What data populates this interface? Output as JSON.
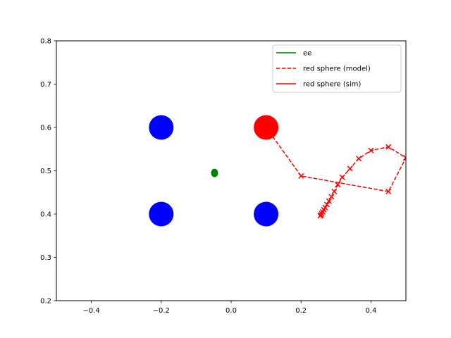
{
  "chart_data": {
    "type": "scatter",
    "title": "",
    "xlabel": "",
    "ylabel": "",
    "xlim": [
      -0.5,
      0.5
    ],
    "ylim": [
      0.2,
      0.8
    ],
    "xticks": [
      -0.4,
      -0.2,
      0.0,
      0.2,
      0.4
    ],
    "xtick_labels": [
      "−0.4",
      "−0.2",
      "0.0",
      "0.2",
      "0.4"
    ],
    "yticks": [
      0.2,
      0.3,
      0.4,
      0.5,
      0.6,
      0.7,
      0.8
    ],
    "ytick_labels": [
      "0.2",
      "0.3",
      "0.4",
      "0.5",
      "0.6",
      "0.7",
      "0.8"
    ],
    "grid": false,
    "legend_position": "top-right",
    "spheres": [
      {
        "color": "blue",
        "x": -0.2,
        "y": 0.6
      },
      {
        "color": "blue",
        "x": -0.2,
        "y": 0.4
      },
      {
        "color": "blue",
        "x": 0.1,
        "y": 0.4
      },
      {
        "color": "red",
        "x": 0.1,
        "y": 0.6
      }
    ],
    "series": [
      {
        "name": "ee",
        "color": "#008000",
        "style": "solid",
        "x": [
          -0.05,
          -0.045
        ],
        "y": [
          0.495,
          0.495
        ]
      },
      {
        "name": "red sphere (model)",
        "color": "#ff0000",
        "style": "dashed",
        "marker": "x",
        "x": [
          0.1,
          0.2,
          0.45,
          0.5,
          0.45,
          0.4,
          0.365,
          0.34,
          0.318,
          0.305,
          0.295,
          0.287,
          0.28,
          0.274,
          0.269,
          0.265,
          0.262,
          0.259,
          0.257,
          0.255
        ],
        "y": [
          0.6,
          0.488,
          0.452,
          0.53,
          0.555,
          0.547,
          0.528,
          0.505,
          0.485,
          0.468,
          0.452,
          0.44,
          0.43,
          0.422,
          0.415,
          0.41,
          0.405,
          0.401,
          0.398,
          0.396
        ]
      },
      {
        "name": "red sphere (sim)",
        "color": "#ff0000",
        "style": "solid",
        "x": [],
        "y": []
      }
    ],
    "legend": [
      {
        "label": "ee",
        "color": "#008000",
        "style": "solid"
      },
      {
        "label": "red sphere (model)",
        "color": "#ff0000",
        "style": "dashed"
      },
      {
        "label": "red sphere (sim)",
        "color": "#ff0000",
        "style": "solid"
      }
    ]
  }
}
